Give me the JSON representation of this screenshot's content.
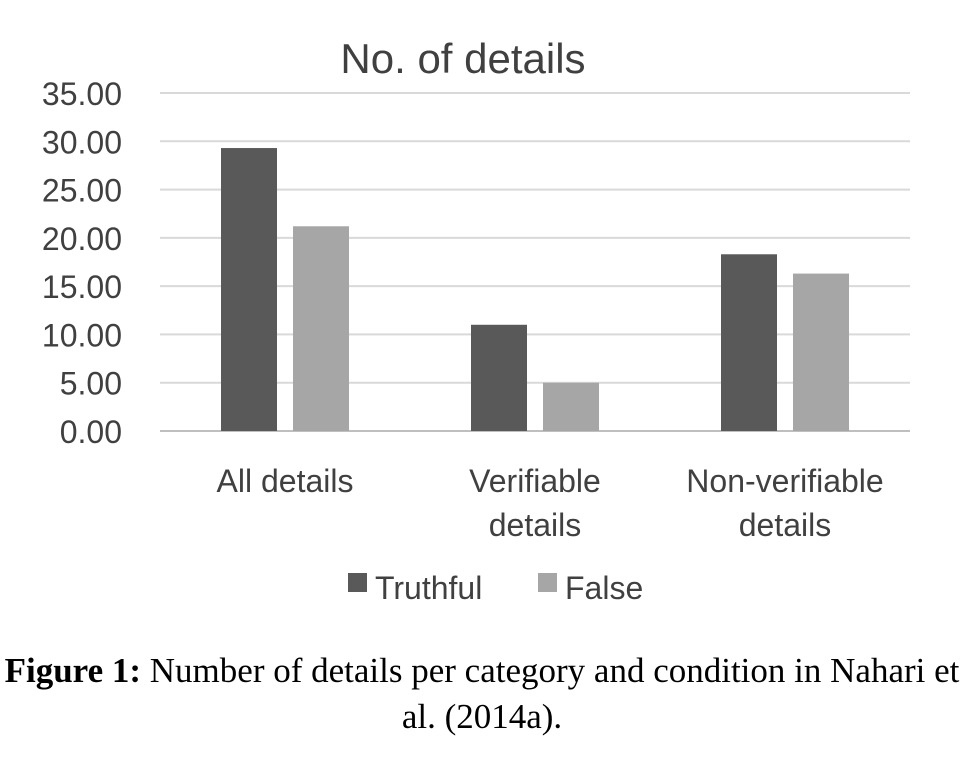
{
  "chart_data": {
    "type": "bar",
    "title": "No. of details",
    "categories": [
      [
        "All details"
      ],
      [
        "Verifiable",
        "details"
      ],
      [
        "Non-verifiable",
        "details"
      ]
    ],
    "series": [
      {
        "name": "Truthful",
        "values": [
          29.3,
          11.0,
          18.3
        ],
        "color": "#595959"
      },
      {
        "name": "False",
        "values": [
          21.2,
          5.0,
          16.3
        ],
        "color": "#a6a6a6"
      }
    ],
    "ylim": [
      0,
      35
    ],
    "yticks": [
      "0.00",
      "5.00",
      "10.00",
      "15.00",
      "20.00",
      "25.00",
      "30.00",
      "35.00"
    ],
    "grid": true,
    "legend": "bottom"
  },
  "caption": {
    "label": "Figure 1:",
    "text": "Number of details per category and condition in Nahari et al. (2014a)."
  }
}
